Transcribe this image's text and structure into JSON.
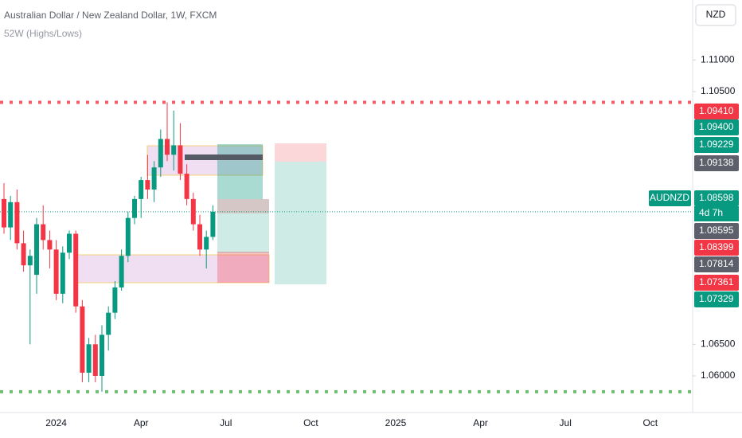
{
  "chart_data": {
    "type": "candlestick",
    "title": "Australian Dollar / New Zealand Dollar, 1W, FXCM",
    "subtitle": "52W (Highs/Lows)",
    "currency": "NZD",
    "symbol": "AUDNZD",
    "countdown": "4d 7h",
    "up_color": "#089981",
    "down_color": "#f23645",
    "categories": [
      null,
      null,
      null,
      null,
      null,
      null,
      null,
      null,
      "2024",
      null,
      null,
      null,
      null,
      null,
      null,
      null,
      null,
      null,
      null,
      null,
      null,
      "Apr",
      null,
      null,
      null,
      null,
      null,
      null,
      null,
      null,
      null,
      null,
      null,
      null,
      "Jul",
      null,
      null,
      null,
      null,
      null,
      null,
      null,
      null,
      null,
      null,
      null,
      null,
      "Oct",
      null,
      null,
      null,
      null,
      null,
      null,
      null,
      null,
      null,
      null,
      null,
      null,
      "2025",
      null,
      null,
      null,
      null,
      null,
      null,
      null,
      null,
      null,
      null,
      null,
      null,
      "Apr",
      null,
      null,
      null,
      null,
      null,
      null,
      null,
      null,
      null,
      null,
      null,
      null,
      "Jul",
      null,
      null,
      null,
      null,
      null,
      null,
      null,
      null,
      null,
      null,
      null,
      null,
      "Oct",
      null,
      null,
      null,
      null,
      null,
      null
    ],
    "open": [
      1.088,
      1.0835,
      1.0875,
      1.081,
      1.0775,
      1.076,
      1.084,
      1.0815,
      1.08,
      1.073,
      1.0795,
      1.0825,
      1.071,
      1.0605,
      1.065,
      1.06,
      1.0665,
      1.07,
      1.074,
      1.079,
      1.085,
      1.088,
      1.091,
      1.0895,
      1.093,
      1.0975,
      1.095,
      1.0965,
      1.092,
      1.088,
      1.084,
      1.08,
      1.082,
      null,
      null,
      null,
      null,
      null,
      null,
      null,
      null,
      null,
      null,
      null,
      null,
      null,
      null,
      null,
      null,
      null,
      null,
      null,
      null,
      null,
      null,
      null,
      null,
      null,
      null,
      null,
      null,
      null,
      null,
      null,
      null,
      null,
      null,
      null,
      null,
      null,
      null,
      null,
      null,
      null,
      null,
      null,
      null,
      null,
      null,
      null,
      null,
      null,
      null,
      null,
      null,
      null,
      null,
      null,
      null,
      null,
      null,
      null,
      null,
      null,
      null,
      null,
      null,
      null,
      null,
      null,
      null,
      null,
      null,
      null,
      null,
      null
    ],
    "high": [
      1.0905,
      1.0885,
      1.0895,
      1.083,
      1.08,
      1.085,
      1.087,
      1.083,
      1.0815,
      1.0805,
      1.083,
      1.083,
      1.072,
      1.066,
      1.0665,
      1.068,
      1.071,
      1.075,
      1.08,
      1.086,
      1.0885,
      1.0915,
      1.095,
      1.094,
      1.099,
      1.1033,
      1.102,
      1.1,
      1.0935,
      1.089,
      1.0855,
      1.083,
      1.087,
      null,
      null,
      null,
      null,
      null,
      null,
      null,
      null,
      null,
      null,
      null,
      null,
      null,
      null,
      null,
      null,
      null,
      null,
      null,
      null,
      null,
      null,
      null,
      null,
      null,
      null,
      null,
      null,
      null,
      null,
      null,
      null,
      null,
      null,
      null,
      null,
      null,
      null,
      null,
      null,
      null,
      null,
      null,
      null,
      null,
      null,
      null,
      null,
      null,
      null,
      null,
      null,
      null,
      null,
      null,
      null,
      null,
      null,
      null,
      null,
      null,
      null,
      null,
      null,
      null,
      null,
      null,
      null,
      null,
      null,
      null,
      null,
      null
    ],
    "low": [
      1.0825,
      1.0815,
      1.08,
      1.0765,
      1.065,
      1.073,
      1.08,
      1.077,
      1.072,
      1.0715,
      1.0785,
      1.07,
      1.059,
      1.059,
      1.059,
      1.0575,
      1.064,
      1.069,
      1.0735,
      1.078,
      1.084,
      1.085,
      1.088,
      1.0875,
      1.0915,
      1.094,
      1.0925,
      1.091,
      1.087,
      1.083,
      1.079,
      1.077,
      1.0815,
      null,
      null,
      null,
      null,
      null,
      null,
      null,
      null,
      null,
      null,
      null,
      null,
      null,
      null,
      null,
      null,
      null,
      null,
      null,
      null,
      null,
      null,
      null,
      null,
      null,
      null,
      null,
      null,
      null,
      null,
      null,
      null,
      null,
      null,
      null,
      null,
      null,
      null,
      null,
      null,
      null,
      null,
      null,
      null,
      null,
      null,
      null,
      null,
      null,
      null,
      null,
      null,
      null,
      null,
      null,
      null,
      null,
      null,
      null,
      null,
      null,
      null,
      null,
      null,
      null,
      null,
      null,
      null,
      null,
      null,
      null,
      null,
      null
    ],
    "close": [
      1.0835,
      1.0875,
      1.081,
      1.0775,
      1.079,
      1.084,
      1.0815,
      1.08,
      1.073,
      1.0795,
      1.0825,
      1.071,
      1.0605,
      1.065,
      1.06,
      1.0665,
      1.07,
      1.074,
      1.079,
      1.085,
      1.088,
      1.091,
      1.0895,
      1.093,
      1.0975,
      1.095,
      1.0965,
      1.092,
      1.088,
      1.084,
      1.08,
      1.082,
      1.086,
      null,
      null,
      null,
      null,
      null,
      null,
      null,
      null,
      null,
      null,
      null,
      null,
      null,
      null,
      null,
      null,
      null,
      null,
      null,
      null,
      null,
      null,
      null,
      null,
      null,
      null,
      null,
      null,
      null,
      null,
      null,
      null,
      null,
      null,
      null,
      null,
      null,
      null,
      null,
      null,
      null,
      null,
      null,
      null,
      null,
      null,
      null,
      null,
      null,
      null,
      null,
      null,
      null,
      null,
      null,
      null,
      null,
      null,
      null,
      null,
      null,
      null,
      null,
      null,
      null,
      null,
      null,
      null,
      null,
      null,
      null,
      null,
      null
    ],
    "high_52w": 1.1033,
    "low_52w": 1.0575,
    "current_price": 1.08598,
    "ylim": [
      1.0542,
      1.1195
    ],
    "yticks": [
      {
        "value": 1.11,
        "label": "1.11000"
      },
      {
        "value": 1.105,
        "label": "1.10500"
      },
      {
        "value": 1.065,
        "label": "1.06500"
      },
      {
        "value": 1.06,
        "label": "1.06000"
      }
    ],
    "price_labels": [
      {
        "value": 1.0941,
        "label": "1.09410",
        "color": "#f23645"
      },
      {
        "value": 1.094,
        "label": "1.09400",
        "color": "#089981"
      },
      {
        "value": 1.09229,
        "label": "1.09229",
        "color": "#089981"
      },
      {
        "value": 1.09138,
        "label": "1.09138",
        "color": "#5d606b"
      },
      {
        "value": 1.08598,
        "label": "1.08598",
        "color": "#089981"
      },
      {
        "value": 1.08595,
        "label": "1.08595",
        "color": "#5d606b"
      },
      {
        "value": 1.08399,
        "label": "1.08399",
        "color": "#f23645"
      },
      {
        "value": 1.07814,
        "label": "1.07814",
        "color": "#5d606b"
      },
      {
        "value": 1.07361,
        "label": "1.07361",
        "color": "#f23645"
      },
      {
        "value": 1.07329,
        "label": "1.07329",
        "color": "#089981"
      }
    ]
  }
}
